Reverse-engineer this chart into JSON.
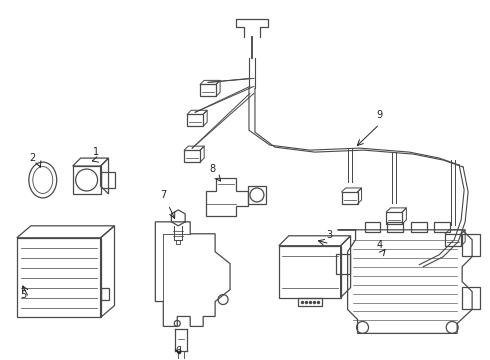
{
  "background_color": "#ffffff",
  "line_color": "#4a4a4a",
  "lw": 0.9,
  "figsize": [
    4.9,
    3.6
  ],
  "dpi": 100
}
